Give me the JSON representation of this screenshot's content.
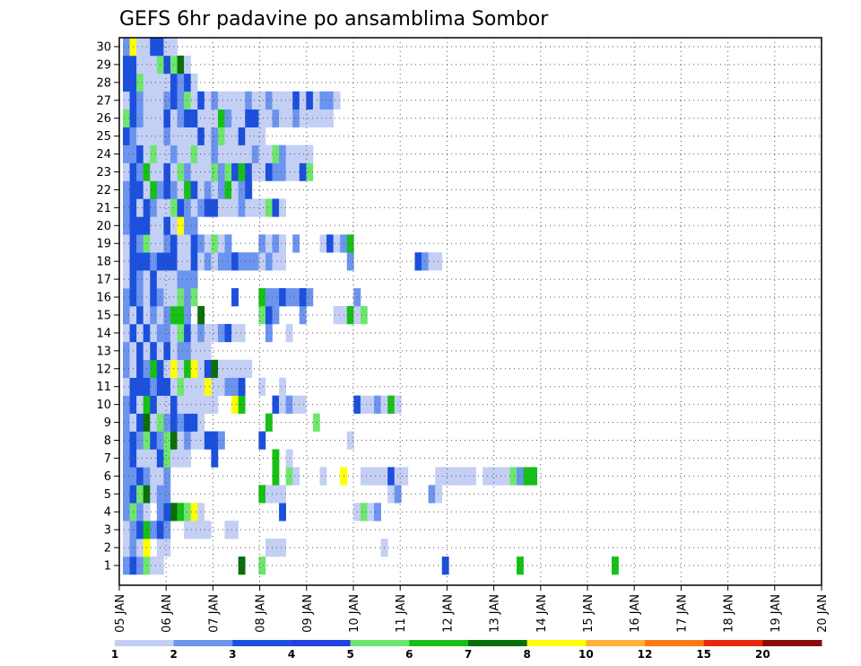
{
  "chart_data": {
    "type": "heatmap",
    "title": "GEFS 6hr padavine po ansamblima Sombor",
    "x_labels": [
      "05 JAN",
      "06 JAN",
      "07 JAN",
      "08 JAN",
      "09 JAN",
      "10 JAN",
      "11 JAN",
      "12 JAN",
      "13 JAN",
      "14 JAN",
      "15 JAN",
      "16 JAN",
      "17 JAN",
      "18 JAN",
      "19 JAN",
      "20 JAN"
    ],
    "y_labels": [
      "1",
      "2",
      "3",
      "4",
      "5",
      "6",
      "7",
      "8",
      "9",
      "10",
      "11",
      "12",
      "13",
      "14",
      "15",
      "16",
      "17",
      "18",
      "19",
      "20",
      "21",
      "22",
      "23",
      "24",
      "25",
      "26",
      "27",
      "28",
      "29",
      "30"
    ],
    "legend_levels": [
      "1",
      "2",
      "3",
      "4",
      "5",
      "6",
      "7",
      "8",
      "10",
      "12",
      "15",
      "20"
    ],
    "legend_colors": [
      "#c4cff5",
      "#6b94ee",
      "#1b4fdd",
      "#2140e0",
      "#6ee66e",
      "#16c016",
      "#0a6e0a",
      "#ffff00",
      "#ffb13a",
      "#ff7a10",
      "#e8280e",
      "#8a0a0a"
    ],
    "colors": {
      "1": "#c4cff5",
      "2": "#6b94ee",
      "3": "#1b4fdd",
      "4": "#2140e0",
      "5": "#6ee66e",
      "6": "#16c016",
      "7": "#0a6e0a",
      "8": "#ffff00",
      "10": "#ffb13a",
      "12": "#ff7a10",
      "15": "#e8280e",
      "20": "#8a0a0a"
    },
    "cells": [
      [
        1,
        "1:2|2:3|3:2|4:5|5:1|6:1|18:7|21:5|48:3|59:6|73:6"
      ],
      [
        2,
        "1:1|2:2|3:1|4:8|6:1|7:1|22:1|23:1|24:1|39:1"
      ],
      [
        3,
        "1:1|2:2|3:3|4:6|5:2|6:3|7:2|10:1|11:1|12:1|13:1|16:1|17:1"
      ],
      [
        4,
        "1:2|2:5|3:2|4:1|6:2|7:3|8:7|9:6|10:5|11:8|12:1|24:3|35:1|36:5|37:1|38:2"
      ],
      [
        5,
        "1:2|2:3|3:5|4:7|5:1|6:2|7:2|21:6|22:1|23:1|24:1|40:1|41:2|46:2|47:1"
      ],
      [
        6,
        "1:2|2:2|3:3|4:2|5:1|6:1|7:2|23:6|25:5|26:1|30:1|33:8|36:1|37:1|38:1|39:1|40:3|41:1|42:1|47:1|48:1|49:1|50:1|51:1|52:1|54:1|55:1|56:1|57:1|58:5|59:2|60:6|61:6"
      ],
      [
        7,
        "1:2|2:3|3:1|4:1|5:1|6:3|7:5|8:1|9:1|10:1|14:3|23:6|25:1"
      ],
      [
        8,
        "1:2|2:3|3:2|4:5|5:3|6:2|7:5|8:7|9:1|10:2|11:1|12:1|13:3|14:3|15:2|21:3|34:1"
      ],
      [
        9,
        "1:2|2:1|3:3|4:7|5:1|6:5|7:2|8:3|9:2|10:3|11:3|12:1|22:6|29:5"
      ],
      [
        10,
        "1:2|2:3|3:1|4:6|5:3|6:1|7:1|8:3|9:1|10:1|11:1|12:1|13:1|14:1|17:8|18:6|23:3|24:1|25:2|26:1|27:1|35:3|36:1|37:1|38:2|39:1|40:6|41:1"
      ],
      [
        11,
        "1:1|2:3|3:3|4:3|5:2|6:3|7:3|8:1|9:5|10:1|11:1|12:1|13:8|14:1|15:1|16:2|17:2|18:3|21:1|24:1"
      ],
      [
        12,
        "1:2|2:1|3:3|4:2|5:6|6:3|7:1|8:8|9:1|10:6|11:8|12:1|13:3|14:7|15:1|16:1|17:1|18:1|19:1"
      ],
      [
        13,
        "1:2|2:1|3:3|4:1|5:3|6:1|7:3|8:1|9:2|10:2|11:1|12:1|13:1"
      ],
      [
        14,
        "1:1|2:3|3:1|4:3|5:1|6:2|7:2|8:1|9:5|10:3|11:1|12:2|13:1|14:1|15:2|16:3|17:1|18:1|22:2|25:1"
      ],
      [
        15,
        "1:2|2:1|3:3|4:1|5:2|6:1|7:2|8:6|9:6|10:2|12:7|21:5|22:3|23:2|27:2|32:1|33:1|34:6|35:1|36:5"
      ],
      [
        16,
        "1:2|2:3|3:2|4:1|5:3|6:2|7:1|8:1|9:5|10:2|11:5|17:3|21:6|22:2|23:2|24:3|25:2|26:2|27:3|28:2|35:2"
      ],
      [
        17,
        "1:1|2:3|3:2|4:1|5:3|6:1|7:1|8:1|9:2|10:2|11:2"
      ],
      [
        18,
        "1:1|2:3|3:3|4:3|5:2|6:3|7:3|8:3|9:1|10:1|11:3|12:1|13:2|14:1|15:2|16:2|17:3|18:2|19:2|20:2|21:1|22:2|23:1|24:1|34:2|44:3|45:2|46:1|47:1"
      ],
      [
        19,
        "1:1|2:3|3:2|4:5|5:1|6:1|7:2|8:3|9:1|10:1|11:3|12:2|13:1|14:5|15:1|16:2|21:2|22:1|23:2|24:1|26:2|30:1|31:3|32:1|33:2|34:6"
      ],
      [
        20,
        "1:2|2:3|3:3|4:3|5:1|6:1|7:3|8:1|9:8|10:2|11:2"
      ],
      [
        21,
        "1:2|2:3|3:1|4:3|5:2|6:1|7:1|8:5|9:3|10:2|11:1|12:2|13:3|14:3|15:1|16:1|17:1|18:2|19:1|20:1|21:1|22:5|23:3|24:1"
      ],
      [
        22,
        "1:2|2:3|3:3|4:1|5:6|6:2|7:3|8:2|9:1|10:6|11:3|12:1|13:2|14:1|15:2|16:6|17:1|18:2|19:3"
      ],
      [
        23,
        "1:1|2:3|3:2|4:6|5:1|6:1|7:3|8:1|9:5|10:2|11:1|12:1|13:1|14:5|15:2|16:5|17:3|18:6|19:3|20:1|21:1|22:3|23:2|24:2|25:1|26:1|27:3|28:5"
      ],
      [
        24,
        "1:2|2:2|3:3|4:1|5:5|6:1|7:1|8:2|9:1|10:1|11:5|12:1|13:1|14:2|15:1|16:1|17:1|18:1|19:1|20:2|21:1|22:1|23:5|24:2|25:1|26:1|27:1|28:1"
      ],
      [
        25,
        "1:3|2:2|3:1|4:1|5:1|6:1|7:2|8:1|9:1|10:1|11:1|12:3|13:1|14:2|15:5|16:1|17:1|18:3|19:1|20:1|21:1"
      ],
      [
        26,
        "1:5|2:3|3:2|4:1|5:1|6:1|7:3|8:1|9:2|10:3|11:3|12:1|13:1|14:1|15:6|16:2|17:1|18:1|19:3|20:3|21:1|22:1|23:2|24:1|25:1|26:2|27:1|28:1|29:1|30:1|31:1"
      ],
      [
        27,
        "1:1|2:3|3:2|4:1|5:1|6:1|7:2|8:3|9:2|10:5|11:1|12:3|13:1|14:2|15:1|16:1|17:1|18:1|19:2|20:1|21:1|22:2|23:1|24:1|25:1|26:3|27:1|28:3|29:1|30:2|31:2|32:1"
      ],
      [
        28,
        "1:3|2:3|3:5|4:1|5:1|6:1|7:1|8:3|9:2|10:3|11:1"
      ],
      [
        29,
        "1:3|2:3|3:1|4:1|5:1|6:5|7:3|8:5|9:7|10:1"
      ],
      [
        30,
        "1:2|2:8|3:1|4:1|5:3|6:3|7:1|8:1"
      ]
    ]
  },
  "cells_note": ""
}
